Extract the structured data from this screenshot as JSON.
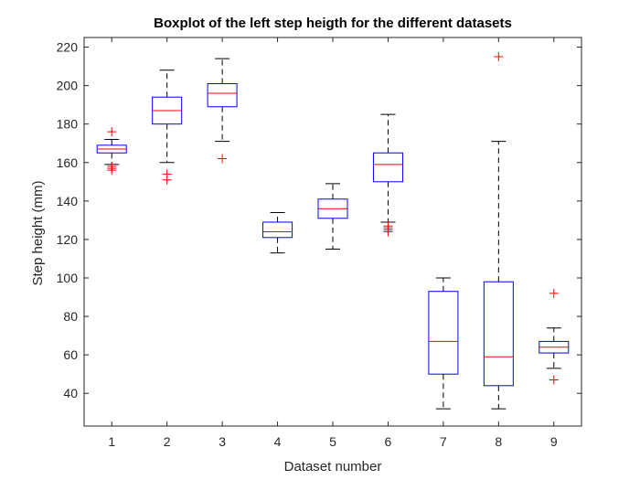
{
  "chart_data": {
    "type": "boxplot",
    "title": "Boxplot of the left step heigth for the different datasets",
    "xlabel": "Dataset number",
    "ylabel": "Step height (mm)",
    "ylim": [
      23,
      225
    ],
    "yticks": [
      40,
      60,
      80,
      100,
      120,
      140,
      160,
      180,
      200,
      220
    ],
    "categories": [
      "1",
      "2",
      "3",
      "4",
      "5",
      "6",
      "7",
      "8",
      "9"
    ],
    "grid": false,
    "colors": {
      "box": "#0000ff",
      "median": "#ff0000",
      "whisker": "#000000",
      "outlier": "#ff0000",
      "axis": "#262626"
    },
    "boxes": [
      {
        "label": "1",
        "whisker_low": 159,
        "q1": 165,
        "median": 167,
        "q3": 169,
        "whisker_high": 172,
        "outliers": [
          176,
          158,
          157,
          156
        ]
      },
      {
        "label": "2",
        "whisker_low": 160,
        "q1": 180,
        "median": 187,
        "q3": 194,
        "whisker_high": 208,
        "outliers": [
          154,
          151
        ]
      },
      {
        "label": "3",
        "whisker_low": 171,
        "q1": 189,
        "median": 196,
        "q3": 201,
        "whisker_high": 214,
        "outliers": [
          162
        ]
      },
      {
        "label": "4",
        "whisker_low": 113,
        "q1": 121,
        "median": 124,
        "q3": 129,
        "whisker_high": 134,
        "outliers": []
      },
      {
        "label": "5",
        "whisker_low": 115,
        "q1": 131,
        "median": 136,
        "q3": 141,
        "whisker_high": 149,
        "outliers": []
      },
      {
        "label": "6",
        "whisker_low": 129,
        "q1": 150,
        "median": 159,
        "q3": 165,
        "whisker_high": 185,
        "outliers": [
          127,
          126,
          125,
          124
        ]
      },
      {
        "label": "7",
        "whisker_low": 32,
        "q1": 50,
        "median": 67,
        "q3": 93,
        "whisker_high": 100,
        "outliers": []
      },
      {
        "label": "8",
        "whisker_low": 32,
        "q1": 44,
        "median": 59,
        "q3": 98,
        "whisker_high": 171,
        "outliers": [
          215
        ]
      },
      {
        "label": "9",
        "whisker_low": 53,
        "q1": 61,
        "median": 64,
        "q3": 67,
        "whisker_high": 74,
        "outliers": [
          92,
          47
        ]
      }
    ]
  }
}
